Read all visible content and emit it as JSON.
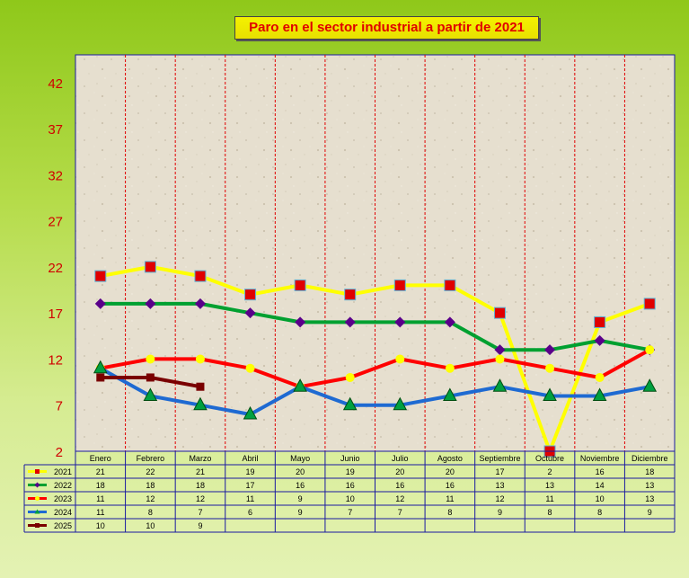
{
  "chart_data": {
    "type": "line",
    "title": "Paro en el sector industrial a partir de 2021",
    "categories": [
      "Enero",
      "Febrero",
      "Marzo",
      "Abril",
      "Mayo",
      "Junio",
      "Julio",
      "Agosto",
      "Septiembre",
      "Octubre",
      "Noviembre",
      "Diciembre"
    ],
    "ylim": [
      2,
      45
    ],
    "yticks": [
      2,
      7,
      12,
      17,
      22,
      27,
      32,
      37,
      42
    ],
    "grid": "vertical dashed red between categories",
    "legend": "data table below plot",
    "series": [
      {
        "name": "2021",
        "color": "#ffff00",
        "marker": "square",
        "marker_color": "#e00000",
        "values": [
          21,
          22,
          21,
          19,
          20,
          19,
          20,
          20,
          17,
          2,
          16,
          18
        ]
      },
      {
        "name": "2022",
        "color": "#00a030",
        "marker": "diamond",
        "marker_color": "#5a008a",
        "values": [
          18,
          18,
          18,
          17,
          16,
          16,
          16,
          16,
          13,
          13,
          14,
          13
        ]
      },
      {
        "name": "2023",
        "color": "#ff0000",
        "marker": "circle",
        "marker_color": "#ffff00",
        "values": [
          11,
          12,
          12,
          11,
          9,
          10,
          12,
          11,
          12,
          11,
          10,
          13
        ]
      },
      {
        "name": "2024",
        "color": "#1e6ad2",
        "marker": "triangle",
        "marker_color": "#00a040",
        "values": [
          11,
          8,
          7,
          6,
          9,
          7,
          7,
          8,
          9,
          8,
          8,
          9
        ]
      },
      {
        "name": "2025",
        "color": "#7a0000",
        "marker": "square",
        "marker_color": "#7a0000",
        "values": [
          10,
          10,
          9,
          null,
          null,
          null,
          null,
          null,
          null,
          null,
          null,
          null
        ]
      }
    ]
  }
}
